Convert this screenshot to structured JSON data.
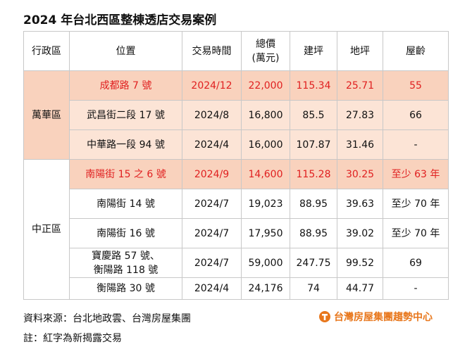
{
  "header": {
    "title": "2024 年台北西區整棟透店交易案例"
  },
  "table": {
    "columns": [
      "行政區",
      "位置",
      "交易時間",
      [
        "總價",
        "(萬元)"
      ],
      "建坪",
      "地坪",
      "屋齡"
    ],
    "groups": [
      {
        "district": "萬華區",
        "rows": [
          {
            "highlight": true,
            "cells": [
              "成都路 7 號",
              "2024/12",
              "22,000",
              "115.34",
              "25.71",
              "55"
            ]
          },
          {
            "highlight": false,
            "cells": [
              "武昌街二段 17 號",
              "2024/8",
              "16,800",
              "85.5",
              "27.83",
              "66"
            ]
          },
          {
            "highlight": false,
            "cells": [
              "中華路一段 94 號",
              "2024/4",
              "16,000",
              "107.87",
              "31.46",
              "-"
            ]
          }
        ]
      },
      {
        "district": "中正區",
        "rows": [
          {
            "highlight": true,
            "cells": [
              "南陽街 15 之 6 號",
              "2024/9",
              "14,600",
              "115.28",
              "30.25",
              "至少 63 年"
            ]
          },
          {
            "highlight": false,
            "cells": [
              "南陽街 14 號",
              "2024/7",
              "19,023",
              "88.95",
              "39.63",
              "至少 70 年"
            ]
          },
          {
            "highlight": false,
            "cells": [
              "南陽街 16 號",
              "2024/7",
              "17,950",
              "88.95",
              "39.02",
              "至少 70 年"
            ]
          },
          {
            "highlight": false,
            "cells": [
              [
                "寶慶路 57 號、",
                "衡陽路 118 號"
              ],
              "2024/7",
              "59,000",
              "247.75",
              "99.52",
              "69"
            ]
          },
          {
            "highlight": false,
            "cells": [
              "衡陽路 30 號",
              "2024/4",
              "24,176",
              "74",
              "44.77",
              "-"
            ]
          }
        ]
      }
    ]
  },
  "footer": {
    "source": "資料來源：台北地政雲、台灣房屋集團",
    "note": "註：紅字為新揭露交易",
    "logo": "台灣房屋集團趨勢中心"
  }
}
